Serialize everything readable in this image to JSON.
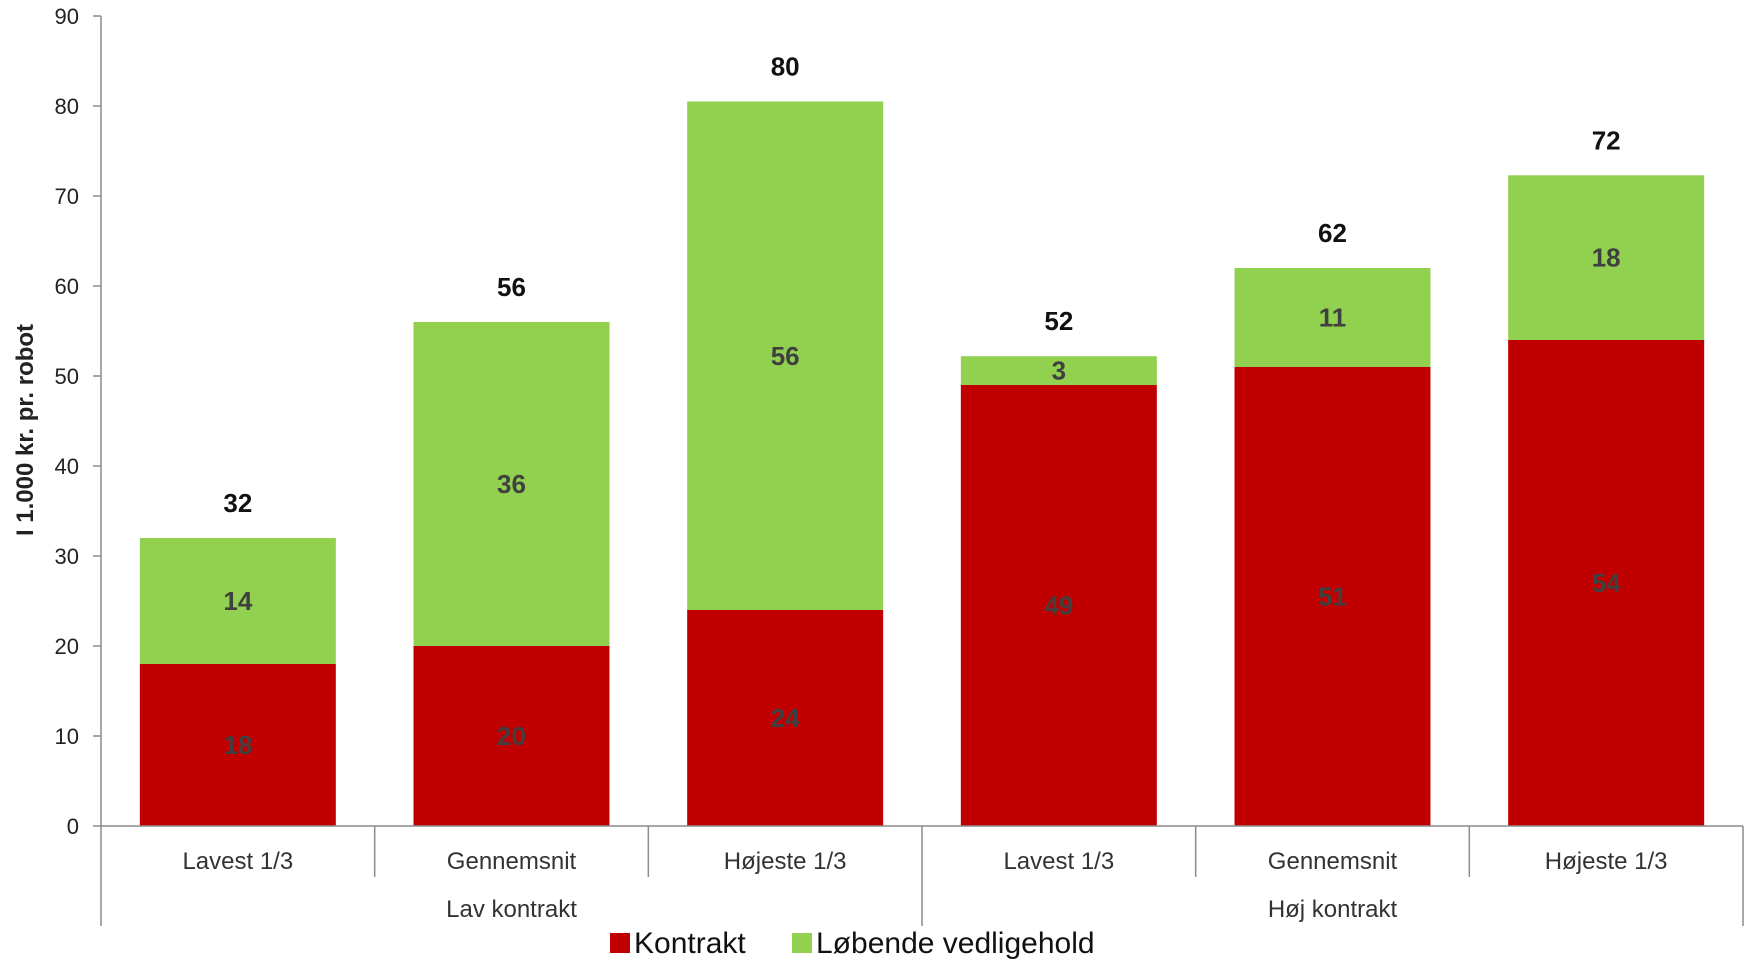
{
  "chart_data": {
    "type": "bar",
    "stacked": true,
    "ylabel": "I 1.000 kr. pr. robot",
    "xlabel": "",
    "ylim": [
      0,
      90
    ],
    "yticks": [
      0,
      10,
      20,
      30,
      40,
      50,
      60,
      70,
      80,
      90
    ],
    "categories": [
      "Lavest 1/3",
      "Gennemsnit",
      "Højeste 1/3",
      "Lavest 1/3",
      "Gennemsnit",
      "Højeste 1/3"
    ],
    "groups": [
      {
        "label": "Lav kontrakt",
        "start": 0,
        "end": 2
      },
      {
        "label": "Høj kontrakt",
        "start": 3,
        "end": 5
      }
    ],
    "series": [
      {
        "name": "Kontrakt",
        "color": "#C00000",
        "values": [
          18,
          20,
          24,
          49,
          51,
          54
        ],
        "labels": [
          "18",
          "20",
          "24",
          "49",
          "51",
          "54"
        ]
      },
      {
        "name": "Løbende vedligehold",
        "color": "#92D050",
        "values": [
          14,
          36,
          56,
          3,
          11,
          18
        ],
        "labels": [
          "14",
          "36",
          "56",
          "3",
          "11",
          "18"
        ]
      }
    ],
    "bar_heights": [
      32,
      56,
      80.5,
      52.2,
      62,
      72.3
    ],
    "totals": [
      "32",
      "56",
      "80",
      "52",
      "62",
      "72"
    ],
    "grid": false,
    "legend_position": "bottom"
  }
}
